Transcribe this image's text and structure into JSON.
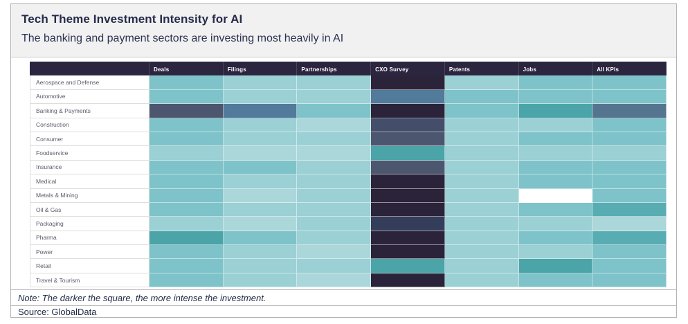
{
  "header": {
    "title": "Tech Theme Investment Intensity for AI",
    "subtitle": "The banking and payment sectors are investing most heavily in AI"
  },
  "footer": {
    "note": "Note: The darker the square, the more intense the investment.",
    "source": "Source: GlobalData"
  },
  "colors": {
    "card_border": "#b3b3b3",
    "band_background": "#f1f1f1",
    "header_row_background": "#2b2540",
    "title_text": "#252b49",
    "row_label_text": "#5a5a68"
  },
  "chart_data": {
    "type": "heatmap",
    "title": "Tech Theme Investment Intensity for AI",
    "subtitle": "The banking and payment sectors are investing most heavily in AI",
    "legend": "Darker square = more intense investment (qualitative scale, no numeric labels shown)",
    "x_categories": [
      "Deals",
      "Filings",
      "Partnerships",
      "CXO Survey",
      "Patents",
      "Jobs",
      "All KPIs"
    ],
    "y_categories": [
      "Aerospace and Defense",
      "Automotive",
      "Banking & Payments",
      "Construction",
      "Consumer",
      "Foodservice",
      "Insurance",
      "Medical",
      "Metals & Mining",
      "Oil & Gas",
      "Packaging",
      "Pharma",
      "Power",
      "Retail",
      "Travel & Tourism"
    ],
    "palette": {
      "W": {
        "hex": "#ffffff",
        "intensity": 0,
        "meaning": "none"
      },
      "L2": {
        "hex": "#abd7da",
        "intensity": 1,
        "meaning": "very low"
      },
      "L1": {
        "hex": "#9bd0d5",
        "intensity": 2,
        "meaning": "low"
      },
      "M": {
        "hex": "#7ec3c9",
        "intensity": 3,
        "meaning": "medium"
      },
      "D1": {
        "hex": "#58adb2",
        "intensity": 4,
        "meaning": "medium-high"
      },
      "D2": {
        "hex": "#4ba4a7",
        "intensity": 5,
        "meaning": "high"
      },
      "SB2": {
        "hex": "#54748f",
        "intensity": 6,
        "meaning": "higher"
      },
      "SB": {
        "hex": "#527a9a",
        "intensity": 6,
        "meaning": "higher"
      },
      "SG2": {
        "hex": "#444e6b",
        "intensity": 7,
        "meaning": "very high"
      },
      "SG": {
        "hex": "#4d566f",
        "intensity": 7,
        "meaning": "very high"
      },
      "NB": {
        "hex": "#343d5a",
        "intensity": 8,
        "meaning": "intense"
      },
      "NV": {
        "hex": "#2a2339",
        "intensity": 9,
        "meaning": "most intense"
      }
    },
    "rows": [
      {
        "label": "Aerospace and Defense",
        "cells": [
          "M",
          "L1",
          "L1",
          "NV",
          "L1",
          "M",
          "M"
        ]
      },
      {
        "label": "Automotive",
        "cells": [
          "M",
          "L1",
          "L1",
          "SB",
          "M",
          "M",
          "M"
        ]
      },
      {
        "label": "Banking & Payments",
        "cells": [
          "SG",
          "SB",
          "M",
          "NV",
          "M",
          "D2",
          "SB2"
        ]
      },
      {
        "label": "Construction",
        "cells": [
          "M",
          "L1",
          "L2",
          "SG2",
          "L1",
          "L1",
          "M"
        ]
      },
      {
        "label": "Consumer",
        "cells": [
          "M",
          "L1",
          "L1",
          "SG",
          "L1",
          "M",
          "M"
        ]
      },
      {
        "label": "Foodservice",
        "cells": [
          "L1",
          "L2",
          "L2",
          "D2",
          "L1",
          "L1",
          "L1"
        ]
      },
      {
        "label": "Insurance",
        "cells": [
          "M",
          "M",
          "L1",
          "SG",
          "L1",
          "M",
          "M"
        ]
      },
      {
        "label": "Medical",
        "cells": [
          "M",
          "L1",
          "L1",
          "NV",
          "L1",
          "M",
          "M"
        ]
      },
      {
        "label": "Metals & Mining",
        "cells": [
          "M",
          "L2",
          "L1",
          "NV",
          "L1",
          "W",
          "M"
        ]
      },
      {
        "label": "Oil & Gas",
        "cells": [
          "M",
          "L1",
          "L1",
          "NV",
          "L1",
          "M",
          "D1"
        ]
      },
      {
        "label": "Packaging",
        "cells": [
          "L1",
          "L2",
          "L1",
          "NB",
          "L1",
          "L1",
          "L2"
        ]
      },
      {
        "label": "Pharma",
        "cells": [
          "D2",
          "M",
          "L1",
          "NV",
          "L1",
          "M",
          "D1"
        ]
      },
      {
        "label": "Power",
        "cells": [
          "M",
          "L1",
          "L2",
          "NV",
          "L1",
          "L1",
          "M"
        ]
      },
      {
        "label": "Retail",
        "cells": [
          "M",
          "L1",
          "L1",
          "D2",
          "L1",
          "D2",
          "M"
        ]
      },
      {
        "label": "Travel & Tourism",
        "cells": [
          "M",
          "L1",
          "L2",
          "NV",
          "L1",
          "M",
          "M"
        ]
      }
    ]
  }
}
